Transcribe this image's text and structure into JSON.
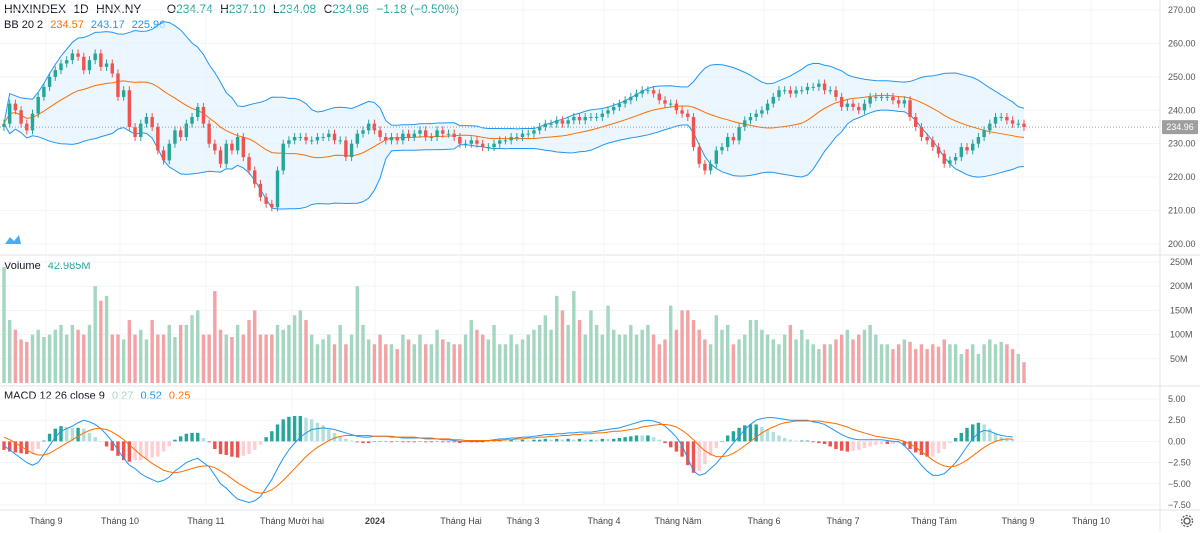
{
  "header": {
    "symbol": "HNXINDEX",
    "interval": "1D",
    "exchange": "HNX.NY",
    "o_label": "O",
    "o_value": "234.74",
    "h_label": "H",
    "h_value": "237.10",
    "l_label": "L",
    "l_value": "234.08",
    "c_label": "C",
    "c_value": "234.96",
    "change": "−1.18 (−0.50%)"
  },
  "indicators": {
    "bb": {
      "label": "BB 20 2",
      "basis": "234.57",
      "upper": "243.17",
      "lower": "225.96"
    },
    "volume": {
      "label": "Volume",
      "value": "42.985M"
    },
    "macd": {
      "label": "MACD 12 26 close 9",
      "hist": "0.27",
      "macd": "0.52",
      "signal": "0.25"
    }
  },
  "colors": {
    "up": "#26a69a",
    "down": "#ef5350",
    "up_vol": "#a5d6c0",
    "down_vol": "#f2a3a6",
    "bb_band": "#2196f3",
    "bb_fill": "#e3f2fd",
    "bb_basis": "#ff6d00",
    "macd_line": "#2196f3",
    "signal_line": "#ff6d00",
    "price_tag": "#9e9e9e"
  },
  "price_tag": "234.96",
  "price_axis": [
    "270.00",
    "260.00",
    "250.00",
    "240.00",
    "230.00",
    "220.00",
    "210.00",
    "200.00"
  ],
  "volume_axis": [
    "250M",
    "200M",
    "150M",
    "100M",
    "50M"
  ],
  "macd_axis": [
    "5.00",
    "2.50",
    "0.00",
    "−2.50",
    "−5.00",
    "−7.50"
  ],
  "x_axis": [
    "Tháng 9",
    "Tháng 10",
    "Tháng 11",
    "Tháng Mười hai",
    "2024",
    "Tháng Hai",
    "Tháng 3",
    "Tháng 4",
    "Tháng Năm",
    "Tháng 6",
    "Tháng 7",
    "Tháng Tám",
    "Tháng 9",
    "Tháng 10"
  ],
  "chart_data": {
    "type": "candlestick",
    "ylim": [
      200,
      270
    ],
    "close": [
      236,
      242,
      240,
      236,
      234,
      239,
      244,
      247,
      250,
      252,
      254,
      255,
      257,
      256,
      252,
      255,
      257,
      253,
      254,
      251,
      244,
      246,
      235,
      232,
      236,
      238,
      235,
      228,
      225,
      230,
      234,
      232,
      236,
      238,
      241,
      236,
      230,
      228,
      224,
      230,
      228,
      232,
      226,
      222,
      218,
      214,
      212,
      211,
      222,
      230,
      231,
      232,
      232,
      231,
      231,
      232,
      232,
      233,
      231,
      231,
      226,
      230,
      233,
      234,
      236,
      234,
      232,
      231,
      232,
      231,
      233,
      232,
      233,
      234,
      232,
      232,
      234,
      233,
      233,
      232,
      230,
      230,
      231,
      230,
      229,
      229,
      230,
      231,
      231,
      232,
      232,
      233,
      233,
      234,
      235,
      236,
      236,
      237,
      236,
      237,
      238,
      237,
      238,
      238,
      238,
      239,
      240,
      241,
      242,
      243,
      244,
      245,
      246,
      246,
      245,
      243,
      242,
      242,
      240,
      239,
      238,
      229,
      224,
      222,
      224,
      228,
      229,
      232,
      231,
      235,
      237,
      238,
      239,
      240,
      242,
      244,
      246,
      246,
      245,
      246,
      246,
      247,
      247,
      248,
      246,
      246,
      244,
      241,
      242,
      241,
      240,
      242,
      244,
      244,
      244,
      244,
      243,
      242,
      243,
      238,
      235,
      232,
      231,
      229,
      227,
      224,
      225,
      226,
      229,
      228,
      230,
      232,
      234,
      236,
      238,
      238,
      237,
      236,
      236,
      235
    ],
    "volume": [
      240,
      130,
      110,
      90,
      85,
      100,
      110,
      95,
      100,
      110,
      120,
      100,
      120,
      110,
      100,
      120,
      200,
      170,
      180,
      100,
      100,
      90,
      130,
      100,
      110,
      90,
      130,
      100,
      100,
      120,
      95,
      120,
      120,
      140,
      150,
      100,
      100,
      190,
      110,
      100,
      95,
      120,
      100,
      130,
      150,
      100,
      100,
      100,
      120,
      110,
      120,
      140,
      150,
      130,
      100,
      80,
      90,
      100,
      80,
      120,
      80,
      100,
      200,
      120,
      90,
      80,
      100,
      80,
      80,
      70,
      100,
      90,
      80,
      100,
      80,
      80,
      110,
      90,
      85,
      80,
      80,
      100,
      130,
      110,
      100,
      90,
      120,
      80,
      80,
      100,
      80,
      90,
      100,
      110,
      120,
      140,
      110,
      180,
      150,
      120,
      190,
      130,
      100,
      150,
      120,
      100,
      160,
      110,
      100,
      100,
      120,
      100,
      110,
      120,
      100,
      80,
      90,
      160,
      110,
      150,
      150,
      130,
      110,
      90,
      80,
      140,
      110,
      120,
      80,
      90,
      100,
      130,
      130,
      110,
      100,
      90,
      80,
      100,
      120,
      90,
      110,
      90,
      80,
      70,
      80,
      80,
      90,
      100,
      110,
      90,
      100,
      110,
      120,
      100,
      80,
      80,
      70,
      80,
      90,
      85,
      70,
      80,
      70,
      80,
      75,
      90,
      80,
      80,
      60,
      70,
      80,
      60,
      80,
      90,
      80,
      85,
      80,
      70,
      60,
      43
    ],
    "macd": [
      -0.5,
      -1,
      -1.5,
      -2,
      -2.5,
      -2.8,
      -2.5,
      -1.5,
      -0.5,
      0.5,
      1.2,
      1.5,
      1.8,
      2.2,
      2.5,
      2.3,
      2.0,
      1.5,
      0.8,
      0,
      -1,
      -2,
      -2.8,
      -3.2,
      -3.8,
      -4.2,
      -4.5,
      -4.8,
      -4.6,
      -4.2,
      -3.5,
      -3.0,
      -2.5,
      -2.2,
      -2.0,
      -2.5,
      -3.0,
      -4.0,
      -5.0,
      -5.5,
      -6.2,
      -6.8,
      -7.0,
      -7.2,
      -7.0,
      -6.5,
      -5.5,
      -4.5,
      -3.2,
      -2.0,
      -1.0,
      -0.2,
      0.5,
      1.0,
      1.4,
      1.5,
      1.6,
      1.5,
      1.4,
      1.2,
      1.0,
      0.8,
      0.6,
      0.5,
      0.5,
      0.6,
      0.6,
      0.6,
      0.5,
      0.5,
      0.4,
      0.4,
      0.4,
      0.4,
      0.3,
      0.3,
      0.3,
      0.2,
      0.2,
      0.1,
      0,
      0,
      0,
      0,
      0,
      0.1,
      0.2,
      0.3,
      0.3,
      0.4,
      0.4,
      0.5,
      0.5,
      0.6,
      0.7,
      0.8,
      0.8,
      0.9,
      0.9,
      1.0,
      1.0,
      1.1,
      1.1,
      1.1,
      1.2,
      1.3,
      1.4,
      1.5,
      1.6,
      1.8,
      2.0,
      2.2,
      2.4,
      2.5,
      2.4,
      2.2,
      1.8,
      1.2,
      0.5,
      -0.5,
      -2,
      -3.5,
      -4.0,
      -3.8,
      -3.2,
      -2.6,
      -1.8,
      -1.0,
      -0.2,
      0.6,
      1.4,
      2.0,
      2.5,
      2.7,
      2.8,
      2.8,
      2.7,
      2.6,
      2.5,
      2.5,
      2.5,
      2.5,
      2.3,
      2.2,
      2.0,
      1.6,
      1.2,
      0.8,
      0.5,
      0.3,
      0.2,
      0.2,
      0.2,
      0.2,
      0.2,
      0.1,
      0,
      0,
      -0.5,
      -1.2,
      -2.0,
      -2.8,
      -3.5,
      -4.0,
      -4.0,
      -3.8,
      -3.2,
      -2.5,
      -1.6,
      -0.6,
      0.3,
      1.0,
      1.3,
      1.2,
      0.9,
      0.7,
      0.6,
      0.52
    ],
    "signal": [
      0.5,
      0.2,
      -0.2,
      -0.6,
      -1.0,
      -1.4,
      -1.6,
      -1.6,
      -1.4,
      -1.0,
      -0.6,
      -0.2,
      0.2,
      0.6,
      1.0,
      1.3,
      1.5,
      1.5,
      1.4,
      1.1,
      0.7,
      0.2,
      -0.4,
      -1.0,
      -1.6,
      -2.1,
      -2.6,
      -3.0,
      -3.4,
      -3.6,
      -3.7,
      -3.6,
      -3.4,
      -3.2,
      -3.0,
      -2.9,
      -2.9,
      -3.1,
      -3.5,
      -3.9,
      -4.4,
      -4.9,
      -5.3,
      -5.7,
      -6.0,
      -6.1,
      -6.0,
      -5.7,
      -5.2,
      -4.6,
      -3.9,
      -3.2,
      -2.5,
      -1.8,
      -1.2,
      -0.7,
      -0.3,
      0.1,
      0.4,
      0.6,
      0.7,
      0.7,
      0.7,
      0.7,
      0.7,
      0.6,
      0.6,
      0.6,
      0.6,
      0.5,
      0.5,
      0.5,
      0.5,
      0.4,
      0.4,
      0.4,
      0.3,
      0.3,
      0.3,
      0.2,
      0.2,
      0.1,
      0.1,
      0.1,
      0.1,
      0.1,
      0.1,
      0.1,
      0.2,
      0.2,
      0.3,
      0.3,
      0.4,
      0.4,
      0.5,
      0.5,
      0.6,
      0.6,
      0.7,
      0.7,
      0.8,
      0.8,
      0.9,
      0.9,
      1.0,
      1.0,
      1.1,
      1.2,
      1.2,
      1.3,
      1.4,
      1.5,
      1.7,
      1.8,
      1.9,
      2.0,
      2.0,
      1.9,
      1.7,
      1.3,
      0.8,
      0.2,
      -0.5,
      -1.1,
      -1.5,
      -1.8,
      -1.8,
      -1.7,
      -1.4,
      -1.0,
      -0.5,
      0,
      0.5,
      1.0,
      1.4,
      1.7,
      2.0,
      2.2,
      2.3,
      2.4,
      2.4,
      2.4,
      2.4,
      2.4,
      2.3,
      2.2,
      2.1,
      1.9,
      1.7,
      1.4,
      1.2,
      1.0,
      0.8,
      0.6,
      0.5,
      0.4,
      0.3,
      0.2,
      0,
      -0.3,
      -0.7,
      -1.2,
      -1.7,
      -2.2,
      -2.6,
      -2.9,
      -3.0,
      -2.9,
      -2.6,
      -2.2,
      -1.7,
      -1.2,
      -0.7,
      -0.3,
      0,
      0.2,
      0.3,
      0.25
    ]
  }
}
